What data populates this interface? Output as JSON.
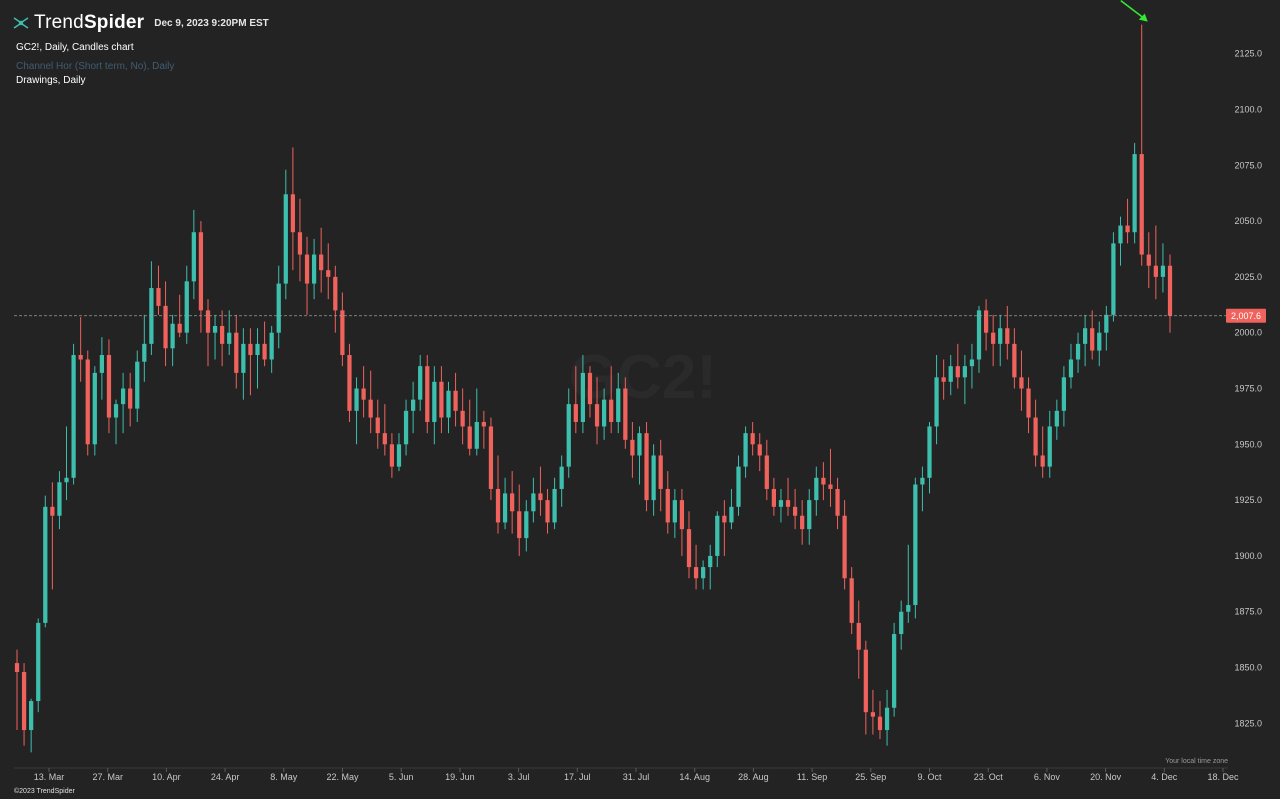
{
  "header": {
    "brand_light": "Trend",
    "brand_bold": "Spider",
    "timestamp": "Dec 9, 2023 9:20PM EST",
    "chart_title": "GC2!, Daily, Candles chart",
    "indicator_label": "Channel Hor (Short term, No), Daily",
    "drawings_label": "Drawings, Daily"
  },
  "watermark": {
    "symbol": "GC2!"
  },
  "footer": {
    "copyright": "©2023 TrendSpider",
    "timezone_note": "Your local time zone"
  },
  "colors": {
    "background": "#232323",
    "up_candle": "#3dbfae",
    "down_candle": "#f0625c",
    "price_line": "#9a9a9a",
    "price_label_bg": "#f0625c",
    "arrow": "#32e832"
  },
  "chart_data": {
    "type": "candlestick",
    "title": "GC2!, Daily, Candles chart",
    "ylim": [
      1805,
      2145
    ],
    "y_ticks": [
      1825.0,
      1850.0,
      1875.0,
      1900.0,
      1925.0,
      1950.0,
      1975.0,
      2000.0,
      2025.0,
      2050.0,
      2075.0,
      2100.0,
      2125.0
    ],
    "x_tick_labels": [
      "13. Mar",
      "27. Mar",
      "10. Apr",
      "24. Apr",
      "8. May",
      "22. May",
      "5. Jun",
      "19. Jun",
      "3. Jul",
      "17. Jul",
      "31. Jul",
      "14. Aug",
      "28. Aug",
      "11. Sep",
      "25. Sep",
      "9. Oct",
      "23. Oct",
      "6. Nov",
      "20. Nov",
      "4. Dec",
      "18. Dec"
    ],
    "last_price": 2007.6,
    "last_price_label": "2,007.6",
    "grid": false,
    "candles": [
      [
        1852,
        1858,
        1822,
        1848
      ],
      [
        1848,
        1852,
        1815,
        1822
      ],
      [
        1822,
        1836,
        1812,
        1835
      ],
      [
        1835,
        1872,
        1830,
        1870
      ],
      [
        1870,
        1927,
        1868,
        1922
      ],
      [
        1922,
        1933,
        1885,
        1918
      ],
      [
        1918,
        1938,
        1912,
        1933
      ],
      [
        1933,
        1958,
        1925,
        1935
      ],
      [
        1935,
        1995,
        1932,
        1990
      ],
      [
        1990,
        2007,
        1978,
        1988
      ],
      [
        1988,
        1992,
        1945,
        1950
      ],
      [
        1950,
        1985,
        1945,
        1982
      ],
      [
        1982,
        1998,
        1970,
        1990
      ],
      [
        1990,
        1997,
        1955,
        1962
      ],
      [
        1962,
        1970,
        1950,
        1968
      ],
      [
        1968,
        1982,
        1955,
        1975
      ],
      [
        1975,
        1982,
        1958,
        1966
      ],
      [
        1966,
        1992,
        1960,
        1987
      ],
      [
        1987,
        2008,
        1978,
        1995
      ],
      [
        1995,
        2032,
        1990,
        2020
      ],
      [
        2020,
        2030,
        2008,
        2012
      ],
      [
        2012,
        2023,
        1985,
        1993
      ],
      [
        1993,
        2008,
        1985,
        2004
      ],
      [
        2004,
        2017,
        1998,
        2000
      ],
      [
        2000,
        2030,
        1995,
        2023
      ],
      [
        2023,
        2055,
        2015,
        2045
      ],
      [
        2045,
        2050,
        2000,
        2010
      ],
      [
        2010,
        2015,
        1985,
        2000
      ],
      [
        2000,
        2008,
        1988,
        2003
      ],
      [
        2003,
        2010,
        1985,
        1995
      ],
      [
        1995,
        2010,
        1990,
        2000
      ],
      [
        2000,
        2008,
        1975,
        1982
      ],
      [
        1982,
        2002,
        1970,
        1995
      ],
      [
        1995,
        2002,
        1972,
        1990
      ],
      [
        1990,
        2002,
        1975,
        1995
      ],
      [
        1995,
        2005,
        1985,
        1988
      ],
      [
        1988,
        2003,
        1982,
        2000
      ],
      [
        2000,
        2030,
        1993,
        2022
      ],
      [
        2022,
        2073,
        2015,
        2062
      ],
      [
        2062,
        2083,
        2028,
        2045
      ],
      [
        2045,
        2060,
        2023,
        2035
      ],
      [
        2035,
        2043,
        2008,
        2022
      ],
      [
        2022,
        2042,
        2015,
        2035
      ],
      [
        2035,
        2047,
        2018,
        2028
      ],
      [
        2028,
        2040,
        2015,
        2025
      ],
      [
        2025,
        2030,
        2000,
        2010
      ],
      [
        2010,
        2018,
        1985,
        1990
      ],
      [
        1990,
        1995,
        1960,
        1965
      ],
      [
        1965,
        1980,
        1950,
        1975
      ],
      [
        1975,
        1985,
        1962,
        1970
      ],
      [
        1970,
        1983,
        1955,
        1962
      ],
      [
        1962,
        1970,
        1948,
        1955
      ],
      [
        1955,
        1968,
        1945,
        1950
      ],
      [
        1950,
        1955,
        1935,
        1940
      ],
      [
        1940,
        1955,
        1938,
        1950
      ],
      [
        1950,
        1970,
        1945,
        1965
      ],
      [
        1965,
        1978,
        1955,
        1970
      ],
      [
        1970,
        1990,
        1965,
        1985
      ],
      [
        1985,
        1990,
        1955,
        1960
      ],
      [
        1960,
        1985,
        1950,
        1978
      ],
      [
        1978,
        1985,
        1955,
        1962
      ],
      [
        1962,
        1978,
        1955,
        1974
      ],
      [
        1974,
        1982,
        1958,
        1965
      ],
      [
        1965,
        1975,
        1950,
        1958
      ],
      [
        1958,
        1970,
        1945,
        1948
      ],
      [
        1948,
        1975,
        1945,
        1960
      ],
      [
        1960,
        1965,
        1948,
        1958
      ],
      [
        1958,
        1962,
        1925,
        1930
      ],
      [
        1930,
        1945,
        1910,
        1915
      ],
      [
        1915,
        1935,
        1912,
        1928
      ],
      [
        1928,
        1938,
        1910,
        1920
      ],
      [
        1920,
        1932,
        1900,
        1908
      ],
      [
        1908,
        1925,
        1902,
        1920
      ],
      [
        1920,
        1935,
        1915,
        1928
      ],
      [
        1928,
        1940,
        1918,
        1925
      ],
      [
        1925,
        1930,
        1910,
        1915
      ],
      [
        1915,
        1935,
        1912,
        1930
      ],
      [
        1930,
        1945,
        1922,
        1940
      ],
      [
        1940,
        1975,
        1935,
        1968
      ],
      [
        1968,
        1985,
        1955,
        1960
      ],
      [
        1960,
        1990,
        1955,
        1982
      ],
      [
        1982,
        1985,
        1962,
        1968
      ],
      [
        1968,
        1980,
        1950,
        1958
      ],
      [
        1958,
        1975,
        1952,
        1970
      ],
      [
        1970,
        1985,
        1955,
        1960
      ],
      [
        1960,
        1982,
        1955,
        1975
      ],
      [
        1975,
        1980,
        1948,
        1952
      ],
      [
        1952,
        1960,
        1935,
        1945
      ],
      [
        1945,
        1958,
        1932,
        1955
      ],
      [
        1955,
        1960,
        1920,
        1925
      ],
      [
        1925,
        1950,
        1918,
        1945
      ],
      [
        1945,
        1952,
        1920,
        1930
      ],
      [
        1930,
        1938,
        1910,
        1915
      ],
      [
        1915,
        1930,
        1908,
        1925
      ],
      [
        1925,
        1930,
        1900,
        1912
      ],
      [
        1912,
        1920,
        1890,
        1895
      ],
      [
        1895,
        1905,
        1885,
        1890
      ],
      [
        1890,
        1898,
        1885,
        1895
      ],
      [
        1895,
        1905,
        1885,
        1900
      ],
      [
        1900,
        1920,
        1895,
        1918
      ],
      [
        1918,
        1925,
        1900,
        1915
      ],
      [
        1915,
        1930,
        1912,
        1922
      ],
      [
        1922,
        1945,
        1918,
        1940
      ],
      [
        1940,
        1958,
        1935,
        1955
      ],
      [
        1955,
        1960,
        1945,
        1950
      ],
      [
        1950,
        1955,
        1938,
        1945
      ],
      [
        1945,
        1952,
        1925,
        1930
      ],
      [
        1930,
        1935,
        1918,
        1922
      ],
      [
        1922,
        1930,
        1915,
        1925
      ],
      [
        1925,
        1935,
        1918,
        1922
      ],
      [
        1922,
        1930,
        1912,
        1918
      ],
      [
        1918,
        1925,
        1905,
        1912
      ],
      [
        1912,
        1930,
        1905,
        1925
      ],
      [
        1925,
        1940,
        1918,
        1935
      ],
      [
        1935,
        1942,
        1925,
        1932
      ],
      [
        1932,
        1948,
        1922,
        1930
      ],
      [
        1930,
        1935,
        1912,
        1918
      ],
      [
        1918,
        1925,
        1885,
        1890
      ],
      [
        1890,
        1895,
        1865,
        1870
      ],
      [
        1870,
        1880,
        1845,
        1858
      ],
      [
        1858,
        1862,
        1820,
        1830
      ],
      [
        1830,
        1840,
        1820,
        1828
      ],
      [
        1828,
        1835,
        1818,
        1822
      ],
      [
        1822,
        1840,
        1815,
        1832
      ],
      [
        1832,
        1870,
        1828,
        1865
      ],
      [
        1865,
        1880,
        1858,
        1875
      ],
      [
        1875,
        1905,
        1870,
        1878
      ],
      [
        1878,
        1935,
        1872,
        1932
      ],
      [
        1932,
        1940,
        1920,
        1935
      ],
      [
        1935,
        1960,
        1928,
        1958
      ],
      [
        1958,
        1990,
        1950,
        1980
      ],
      [
        1980,
        1988,
        1970,
        1978
      ],
      [
        1978,
        1990,
        1972,
        1985
      ],
      [
        1985,
        1995,
        1975,
        1980
      ],
      [
        1980,
        1990,
        1968,
        1985
      ],
      [
        1985,
        1995,
        1975,
        1988
      ],
      [
        1988,
        2012,
        1982,
        2010
      ],
      [
        2010,
        2015,
        1992,
        2000
      ],
      [
        2000,
        2008,
        1985,
        1995
      ],
      [
        1995,
        2008,
        1985,
        2002
      ],
      [
        2002,
        2012,
        1988,
        1995
      ],
      [
        1995,
        2002,
        1975,
        1980
      ],
      [
        1980,
        1992,
        1965,
        1975
      ],
      [
        1975,
        1980,
        1955,
        1962
      ],
      [
        1962,
        1970,
        1940,
        1945
      ],
      [
        1945,
        1958,
        1935,
        1940
      ],
      [
        1940,
        1965,
        1935,
        1958
      ],
      [
        1958,
        1970,
        1952,
        1965
      ],
      [
        1965,
        1985,
        1958,
        1980
      ],
      [
        1980,
        1995,
        1975,
        1988
      ],
      [
        1988,
        2000,
        1982,
        1995
      ],
      [
        1995,
        2008,
        1985,
        2002
      ],
      [
        2002,
        2010,
        1988,
        1992
      ],
      [
        1992,
        2005,
        1985,
        2000
      ],
      [
        2000,
        2012,
        1992,
        2008
      ],
      [
        2008,
        2045,
        2005,
        2040
      ],
      [
        2040,
        2052,
        2030,
        2048
      ],
      [
        2048,
        2060,
        2040,
        2045
      ],
      [
        2045,
        2085,
        2040,
        2080
      ],
      [
        2080,
        2138,
        2030,
        2035
      ],
      [
        2035,
        2045,
        2020,
        2030
      ],
      [
        2030,
        2048,
        2015,
        2025
      ],
      [
        2025,
        2040,
        2018,
        2030
      ],
      [
        2030,
        2035,
        2000,
        2007.6
      ]
    ]
  }
}
